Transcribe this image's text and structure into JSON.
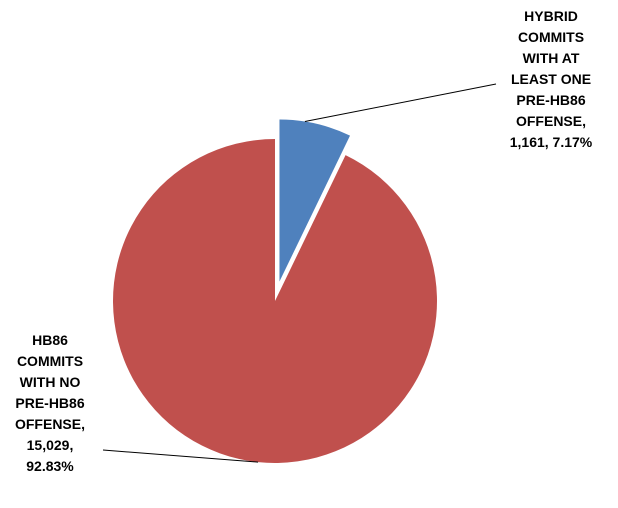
{
  "chart_data": {
    "type": "pie",
    "title": "",
    "slices": [
      {
        "name": "HYBRID COMMITS WITH AT LEAST ONE PRE-HB86 OFFENSE",
        "value": 1161,
        "percent": 7.17,
        "color": "#4F81BD",
        "exploded": true,
        "label_text": "HYBRID\nCOMMITS\nWITH AT\nLEAST ONE\nPRE-HB86\nOFFENSE,\n1,161, 7.17%"
      },
      {
        "name": "HB86 COMMITS WITH NO PRE-HB86 OFFENSE",
        "value": 15029,
        "percent": 92.83,
        "color": "#C0504D",
        "exploded": false,
        "label_text": "HB86\nCOMMITS\nWITH NO\nPRE-HB86\nOFFENSE,\n15,029,\n92.83%"
      }
    ],
    "start_angle_deg": 0,
    "direction": "clockwise",
    "legend": "none",
    "data_labels": "outside with leader lines"
  }
}
